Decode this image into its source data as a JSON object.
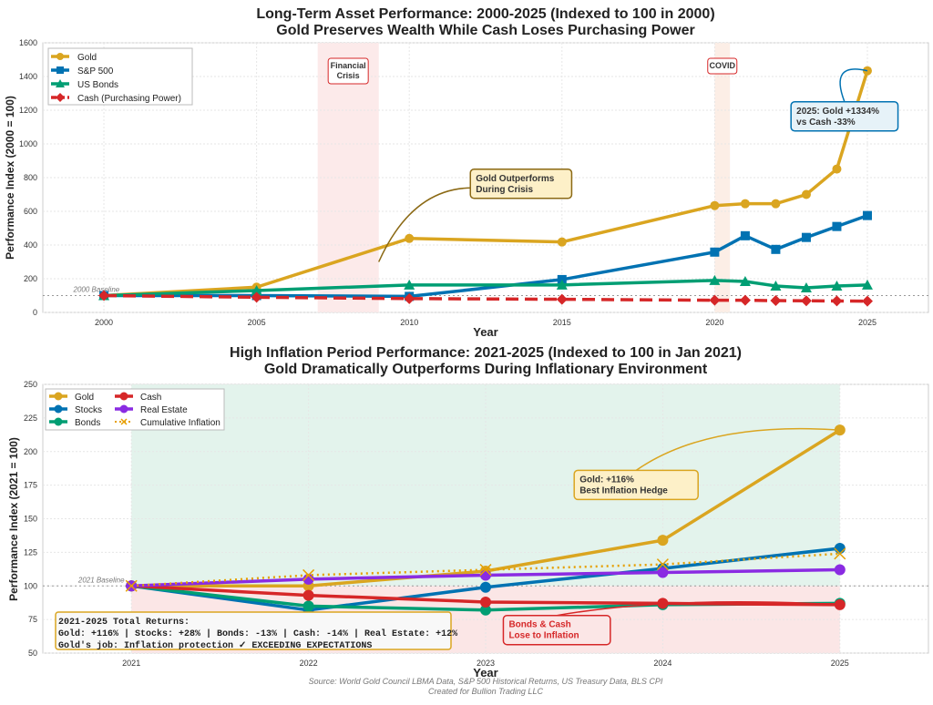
{
  "footer": {
    "source": "Source: World Gold Council LBMA Data, S&P 500 Historical Returns, US Treasury Data, BLS CPI",
    "credit": "Created for Bullion Trading LLC"
  },
  "chart_data": [
    {
      "type": "line",
      "title": "Long-Term Asset Performance: 2000-2025 (Indexed to 100 in 2000)",
      "subtitle": "Gold Preserves Wealth While Cash Loses Purchasing Power",
      "xlabel": "Year",
      "ylabel": "Performance Index (2000 = 100)",
      "xlim": [
        1998,
        2027
      ],
      "ylim": [
        0,
        1600
      ],
      "xticks": [
        2000,
        2005,
        2010,
        2015,
        2020,
        2025
      ],
      "yticks": [
        0,
        200,
        400,
        600,
        800,
        1000,
        1200,
        1400,
        1600
      ],
      "grid": true,
      "legend_position": "top-left",
      "x": [
        2000,
        2005,
        2010,
        2015,
        2020,
        2021,
        2022,
        2023,
        2024,
        2025
      ],
      "series": [
        {
          "name": "Gold",
          "color": "#DAA520",
          "marker": "circle",
          "style": "solid",
          "values": [
            100,
            150,
            439,
            418,
            634,
            645,
            645,
            700,
            851,
            1434
          ]
        },
        {
          "name": "S&P 500",
          "color": "#0072B2",
          "marker": "square",
          "style": "solid",
          "values": [
            100,
            100,
            95,
            195,
            358,
            455,
            374,
            445,
            510,
            575
          ]
        },
        {
          "name": "US Bonds",
          "color": "#009E73",
          "marker": "triangle",
          "style": "solid",
          "values": [
            100,
            130,
            163,
            163,
            190,
            184,
            157,
            146,
            157,
            163
          ]
        },
        {
          "name": "Cash (Purchasing Power)",
          "color": "#D62728",
          "marker": "diamond",
          "style": "dashed",
          "values": [
            100,
            90,
            82,
            78,
            72,
            72,
            70,
            69,
            68,
            67
          ]
        }
      ],
      "baseline": {
        "value": 100,
        "label": "2000 Baseline"
      },
      "shaded_periods": [
        {
          "label": "Financial Crisis",
          "start": 2007,
          "end": 2009,
          "color": "#FCEAEA"
        },
        {
          "label": "COVID",
          "start": 2020,
          "end": 2020.5,
          "color": "#FCEEE6"
        }
      ],
      "annotations": [
        {
          "text": "Gold Outperforms\nDuring Crisis",
          "target": [
            2009,
            300
          ],
          "at": [
            2012,
            850
          ],
          "color": "#8B6914",
          "fill": "#FDF0C8"
        },
        {
          "text": "2025: Gold +1334%\nvs Cash -33%",
          "target": [
            2025,
            1434
          ],
          "at": [
            2022.5,
            1250
          ],
          "color": "#0072B2",
          "fill": "#E6F2F8"
        }
      ]
    },
    {
      "type": "line",
      "title": "High Inflation Period Performance: 2021-2025 (Indexed to 100 in Jan 2021)",
      "subtitle": "Gold Dramatically Outperforms During Inflationary Environment",
      "xlabel": "Year",
      "ylabel": "Performance Index (2021 = 100)",
      "xlim": [
        2020.5,
        2025.5
      ],
      "ylim": [
        50,
        250
      ],
      "xticks": [
        2021,
        2022,
        2023,
        2024,
        2025
      ],
      "yticks": [
        50,
        75,
        100,
        125,
        150,
        175,
        200,
        225,
        250
      ],
      "grid": true,
      "legend_position": "top-left",
      "x": [
        2021,
        2022,
        2023,
        2024,
        2025
      ],
      "series": [
        {
          "name": "Gold",
          "color": "#DAA520",
          "style": "solid",
          "values": [
            100,
            100,
            111,
            134,
            216
          ]
        },
        {
          "name": "Stocks",
          "color": "#0072B2",
          "style": "solid",
          "values": [
            100,
            82,
            99,
            113,
            128
          ]
        },
        {
          "name": "Bonds",
          "color": "#009E73",
          "style": "solid",
          "values": [
            100,
            85,
            82,
            86,
            87
          ]
        },
        {
          "name": "Cash",
          "color": "#D62728",
          "style": "solid",
          "values": [
            100,
            93,
            88,
            87,
            86
          ]
        },
        {
          "name": "Real Estate",
          "color": "#8A2BE2",
          "style": "solid",
          "values": [
            100,
            105,
            108,
            110,
            112
          ]
        },
        {
          "name": "Cumulative Inflation",
          "color": "#E69F00",
          "style": "dotted",
          "values": [
            100,
            108,
            112,
            116,
            124
          ]
        }
      ],
      "baseline": {
        "value": 100,
        "label": "2021 Baseline"
      },
      "shaded_regions": [
        {
          "start": 2021,
          "end": 2025,
          "above": 100,
          "color": "#E3F3EC"
        },
        {
          "start": 2021,
          "end": 2025,
          "below": 100,
          "color": "#FBE6E6"
        }
      ],
      "annotations": [
        {
          "text": "Gold: +116%\nBest Inflation Hedge",
          "target": [
            2025,
            216
          ],
          "at": [
            2023.5,
            186
          ],
          "color": "#DAA520",
          "fill": "#FDF0C8"
        },
        {
          "text": "Bonds & Cash\nLose to Inflation",
          "target": [
            2025,
            86
          ],
          "at": [
            2023.1,
            78
          ],
          "color": "#D62728",
          "fill": "#FBE6E6"
        }
      ],
      "summary_box": [
        "2021-2025 Total Returns:",
        "Gold: +116% | Stocks: +28% | Bonds: -13% | Cash: -14% | Real Estate: +12%",
        "Gold's job: Inflation protection ✓ EXCEEDING EXPECTATIONS"
      ]
    }
  ]
}
